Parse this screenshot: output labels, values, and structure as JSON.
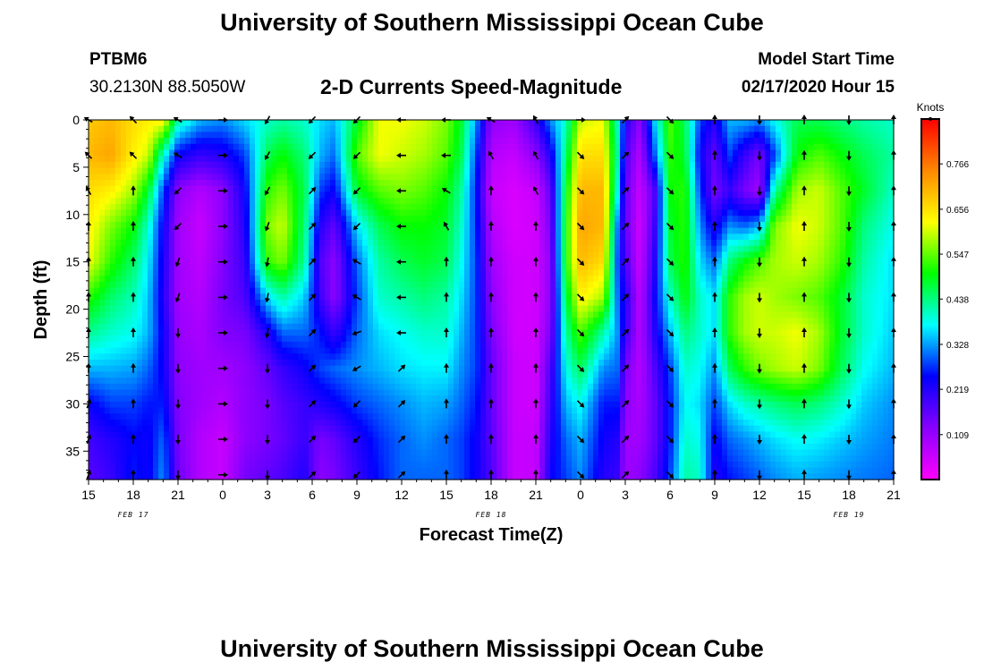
{
  "header": {
    "title_top": "University of Southern Mississippi Ocean Cube",
    "title_bottom": "University of Southern Mississippi Ocean Cube",
    "station_id": "PTBM6",
    "station_coords": "30.2130N 88.5050W",
    "chart_title": "2-D Currents Speed-Magnitude",
    "model_start_label": "Model Start Time",
    "model_start_value": "02/17/2020 Hour 15"
  },
  "chart_data": {
    "type": "heatmap",
    "title": "2-D Currents Speed-Magnitude",
    "xlabel": "Forecast Time(Z)",
    "ylabel": "Depth (ft)",
    "x_tick_labels": [
      "15",
      "18",
      "21",
      "0",
      "3",
      "6",
      "9",
      "12",
      "15",
      "18",
      "21",
      "0",
      "3",
      "6",
      "9",
      "12",
      "15",
      "18",
      "21"
    ],
    "date_labels": [
      {
        "label": "FEB 17",
        "x_hours": 3
      },
      {
        "label": "FEB 18",
        "x_hours": 27
      },
      {
        "label": "FEB 19",
        "x_hours": 51
      }
    ],
    "xlim_hours": [
      0,
      54
    ],
    "y_ticks": [
      0,
      5,
      10,
      15,
      20,
      25,
      30,
      35
    ],
    "ylim": [
      0,
      38
    ],
    "y_inverted": true,
    "colorbar": {
      "unit": "Knots",
      "ticks": [
        "0.766",
        "0.656",
        "0.547",
        "0.438",
        "0.328",
        "0.219",
        "0.109"
      ],
      "tick_values": [
        0.766,
        0.656,
        0.547,
        0.438,
        0.328,
        0.219,
        0.109
      ],
      "range": [
        0,
        0.875
      ],
      "colors": [
        "#ff00ff",
        "#8800ff",
        "#0000ff",
        "#00ffff",
        "#00ff00",
        "#ffff00",
        "#ff8800",
        "#ff0000"
      ]
    },
    "arrow_depths": [
      0,
      3.75,
      7.5,
      11.25,
      15,
      18.75,
      22.5,
      26.25,
      30,
      33.75,
      37.5
    ],
    "speed_profiles": [
      {
        "x_hours": 0,
        "speeds": [
          0.68,
          0.7,
          0.66,
          0.64,
          0.62,
          0.52,
          0.43,
          0.34,
          0.24,
          0.19,
          0.17
        ]
      },
      {
        "x_hours": 1.5,
        "speeds": [
          0.7,
          0.72,
          0.64,
          0.56,
          0.52,
          0.45,
          0.4,
          0.34,
          0.28,
          0.22,
          0.2
        ]
      },
      {
        "x_hours": 3,
        "speeds": [
          0.66,
          0.64,
          0.58,
          0.5,
          0.45,
          0.41,
          0.38,
          0.33,
          0.28,
          0.25,
          0.26
        ]
      },
      {
        "x_hours": 4,
        "speeds": [
          0.64,
          0.6,
          0.48,
          0.4,
          0.37,
          0.35,
          0.34,
          0.3,
          0.26,
          0.24,
          0.24
        ]
      },
      {
        "x_hours": 5,
        "speeds": [
          0.64,
          0.4,
          0.28,
          0.24,
          0.23,
          0.22,
          0.24,
          0.24,
          0.26,
          0.3,
          0.32
        ]
      },
      {
        "x_hours": 6,
        "speeds": [
          0.42,
          0.24,
          0.12,
          0.1,
          0.1,
          0.1,
          0.11,
          0.12,
          0.13,
          0.14,
          0.15
        ]
      },
      {
        "x_hours": 7.5,
        "speeds": [
          0.34,
          0.2,
          0.08,
          0.06,
          0.07,
          0.08,
          0.09,
          0.1,
          0.1,
          0.08,
          0.08
        ]
      },
      {
        "x_hours": 9,
        "speeds": [
          0.32,
          0.22,
          0.12,
          0.12,
          0.13,
          0.14,
          0.13,
          0.1,
          0.08,
          0.06,
          0.06
        ]
      },
      {
        "x_hours": 10.5,
        "speeds": [
          0.36,
          0.28,
          0.24,
          0.22,
          0.2,
          0.18,
          0.14,
          0.12,
          0.12,
          0.12,
          0.14
        ]
      },
      {
        "x_hours": 12,
        "speeds": [
          0.4,
          0.46,
          0.52,
          0.56,
          0.52,
          0.36,
          0.22,
          0.16,
          0.14,
          0.14,
          0.16
        ]
      },
      {
        "x_hours": 13,
        "speeds": [
          0.42,
          0.5,
          0.56,
          0.6,
          0.56,
          0.42,
          0.3,
          0.2,
          0.17,
          0.16,
          0.18
        ]
      },
      {
        "x_hours": 14.5,
        "speeds": [
          0.4,
          0.44,
          0.46,
          0.44,
          0.42,
          0.35,
          0.3,
          0.24,
          0.2,
          0.2,
          0.22
        ]
      },
      {
        "x_hours": 15.5,
        "speeds": [
          0.36,
          0.34,
          0.28,
          0.22,
          0.18,
          0.2,
          0.26,
          0.28,
          0.22,
          0.14,
          0.12
        ]
      },
      {
        "x_hours": 16.5,
        "speeds": [
          0.34,
          0.3,
          0.24,
          0.16,
          0.12,
          0.12,
          0.2,
          0.3,
          0.24,
          0.16,
          0.14
        ]
      },
      {
        "x_hours": 18,
        "speeds": [
          0.48,
          0.54,
          0.48,
          0.36,
          0.3,
          0.28,
          0.3,
          0.32,
          0.28,
          0.22,
          0.2
        ]
      },
      {
        "x_hours": 19.5,
        "speeds": [
          0.62,
          0.62,
          0.54,
          0.46,
          0.42,
          0.4,
          0.36,
          0.34,
          0.3,
          0.27,
          0.26
        ]
      },
      {
        "x_hours": 21,
        "speeds": [
          0.62,
          0.6,
          0.56,
          0.5,
          0.46,
          0.42,
          0.38,
          0.36,
          0.32,
          0.3,
          0.3
        ]
      },
      {
        "x_hours": 22.5,
        "speeds": [
          0.6,
          0.58,
          0.54,
          0.5,
          0.48,
          0.44,
          0.4,
          0.37,
          0.34,
          0.32,
          0.3
        ]
      },
      {
        "x_hours": 24,
        "speeds": [
          0.56,
          0.54,
          0.5,
          0.48,
          0.46,
          0.42,
          0.4,
          0.37,
          0.33,
          0.3,
          0.3
        ]
      },
      {
        "x_hours": 25,
        "speeds": [
          0.48,
          0.46,
          0.42,
          0.4,
          0.38,
          0.36,
          0.34,
          0.32,
          0.3,
          0.28,
          0.28
        ]
      },
      {
        "x_hours": 26,
        "speeds": [
          0.32,
          0.28,
          0.26,
          0.27,
          0.28,
          0.28,
          0.28,
          0.28,
          0.26,
          0.24,
          0.24
        ]
      },
      {
        "x_hours": 27,
        "speeds": [
          0.12,
          0.08,
          0.06,
          0.08,
          0.1,
          0.12,
          0.14,
          0.16,
          0.16,
          0.17,
          0.18
        ]
      },
      {
        "x_hours": 28.5,
        "speeds": [
          0.1,
          0.06,
          0.04,
          0.04,
          0.05,
          0.05,
          0.05,
          0.06,
          0.06,
          0.06,
          0.06
        ]
      },
      {
        "x_hours": 30,
        "speeds": [
          0.2,
          0.12,
          0.06,
          0.05,
          0.05,
          0.05,
          0.05,
          0.05,
          0.05,
          0.06,
          0.06
        ]
      },
      {
        "x_hours": 31,
        "speeds": [
          0.32,
          0.22,
          0.16,
          0.14,
          0.12,
          0.12,
          0.14,
          0.18,
          0.2,
          0.22,
          0.24
        ]
      },
      {
        "x_hours": 32,
        "speeds": [
          0.4,
          0.44,
          0.48,
          0.5,
          0.5,
          0.46,
          0.42,
          0.38,
          0.34,
          0.3,
          0.28
        ]
      },
      {
        "x_hours": 33,
        "speeds": [
          0.6,
          0.66,
          0.7,
          0.72,
          0.7,
          0.64,
          0.54,
          0.46,
          0.38,
          0.34,
          0.32
        ]
      },
      {
        "x_hours": 34.5,
        "speeds": [
          0.62,
          0.66,
          0.7,
          0.7,
          0.66,
          0.58,
          0.42,
          0.32,
          0.26,
          0.24,
          0.22
        ]
      },
      {
        "x_hours": 35.5,
        "speeds": [
          0.4,
          0.42,
          0.38,
          0.3,
          0.28,
          0.3,
          0.32,
          0.3,
          0.26,
          0.22,
          0.2
        ]
      },
      {
        "x_hours": 36,
        "speeds": [
          0.22,
          0.18,
          0.16,
          0.16,
          0.18,
          0.22,
          0.2,
          0.14,
          0.12,
          0.1,
          0.1
        ]
      },
      {
        "x_hours": 37,
        "speeds": [
          0.12,
          0.08,
          0.06,
          0.05,
          0.06,
          0.07,
          0.08,
          0.08,
          0.09,
          0.1,
          0.12
        ]
      },
      {
        "x_hours": 38,
        "speeds": [
          0.36,
          0.3,
          0.18,
          0.2,
          0.22,
          0.24,
          0.22,
          0.18,
          0.16,
          0.16,
          0.18
        ]
      },
      {
        "x_hours": 39,
        "speeds": [
          0.54,
          0.52,
          0.5,
          0.48,
          0.46,
          0.4,
          0.34,
          0.28,
          0.26,
          0.26,
          0.28
        ]
      },
      {
        "x_hours": 40,
        "speeds": [
          0.46,
          0.48,
          0.52,
          0.52,
          0.52,
          0.5,
          0.44,
          0.4,
          0.38,
          0.4,
          0.42
        ]
      },
      {
        "x_hours": 41,
        "speeds": [
          0.28,
          0.24,
          0.28,
          0.32,
          0.36,
          0.4,
          0.4,
          0.38,
          0.36,
          0.38,
          0.4
        ]
      },
      {
        "x_hours": 42,
        "speeds": [
          0.22,
          0.16,
          0.14,
          0.22,
          0.3,
          0.36,
          0.36,
          0.32,
          0.28,
          0.24,
          0.22
        ]
      },
      {
        "x_hours": 43,
        "speeds": [
          0.34,
          0.28,
          0.2,
          0.32,
          0.44,
          0.52,
          0.52,
          0.46,
          0.36,
          0.3,
          0.26
        ]
      },
      {
        "x_hours": 44,
        "speeds": [
          0.34,
          0.2,
          0.14,
          0.3,
          0.5,
          0.58,
          0.58,
          0.52,
          0.4,
          0.32,
          0.28
        ]
      },
      {
        "x_hours": 45,
        "speeds": [
          0.32,
          0.14,
          0.1,
          0.34,
          0.54,
          0.6,
          0.6,
          0.56,
          0.42,
          0.34,
          0.3
        ]
      },
      {
        "x_hours": 46,
        "speeds": [
          0.38,
          0.28,
          0.42,
          0.56,
          0.58,
          0.58,
          0.6,
          0.58,
          0.44,
          0.36,
          0.32
        ]
      },
      {
        "x_hours": 47.5,
        "speeds": [
          0.46,
          0.5,
          0.58,
          0.62,
          0.6,
          0.56,
          0.62,
          0.6,
          0.46,
          0.38,
          0.34
        ]
      },
      {
        "x_hours": 49,
        "speeds": [
          0.46,
          0.54,
          0.6,
          0.6,
          0.58,
          0.54,
          0.58,
          0.56,
          0.44,
          0.37,
          0.33
        ]
      },
      {
        "x_hours": 50.5,
        "speeds": [
          0.44,
          0.5,
          0.54,
          0.54,
          0.52,
          0.48,
          0.48,
          0.46,
          0.4,
          0.35,
          0.32
        ]
      },
      {
        "x_hours": 52,
        "speeds": [
          0.42,
          0.46,
          0.48,
          0.44,
          0.42,
          0.4,
          0.4,
          0.38,
          0.35,
          0.33,
          0.31
        ]
      },
      {
        "x_hours": 54,
        "speeds": [
          0.4,
          0.42,
          0.4,
          0.38,
          0.36,
          0.36,
          0.35,
          0.34,
          0.32,
          0.31,
          0.3
        ]
      }
    ],
    "arrow_columns": [
      {
        "x_hours": 0,
        "angles": [
          300,
          315,
          330,
          0,
          0,
          0,
          0,
          0,
          20,
          20,
          20
        ]
      },
      {
        "x_hours": 3,
        "angles": [
          315,
          315,
          0,
          0,
          0,
          0,
          0,
          0,
          0,
          0,
          0
        ]
      },
      {
        "x_hours": 6,
        "angles": [
          300,
          300,
          225,
          225,
          200,
          200,
          180,
          180,
          180,
          180,
          180
        ]
      },
      {
        "x_hours": 9,
        "angles": [
          90,
          90,
          90,
          90,
          90,
          90,
          90,
          90,
          90,
          90,
          90
        ]
      },
      {
        "x_hours": 12,
        "angles": [
          210,
          210,
          210,
          200,
          190,
          190,
          190,
          180,
          180,
          180,
          180
        ]
      },
      {
        "x_hours": 15,
        "angles": [
          225,
          225,
          45,
          45,
          45,
          45,
          45,
          45,
          45,
          45,
          45
        ]
      },
      {
        "x_hours": 18,
        "angles": [
          225,
          225,
          225,
          225,
          300,
          300,
          250,
          240,
          225,
          225,
          225
        ]
      },
      {
        "x_hours": 21,
        "angles": [
          270,
          270,
          270,
          270,
          270,
          270,
          270,
          45,
          45,
          45,
          45
        ]
      },
      {
        "x_hours": 24,
        "angles": [
          270,
          270,
          300,
          330,
          0,
          0,
          0,
          0,
          0,
          0,
          0
        ]
      },
      {
        "x_hours": 27,
        "angles": [
          300,
          330,
          0,
          0,
          0,
          0,
          0,
          0,
          0,
          0,
          0
        ]
      },
      {
        "x_hours": 30,
        "angles": [
          330,
          330,
          330,
          0,
          0,
          0,
          0,
          0,
          0,
          0,
          0
        ]
      },
      {
        "x_hours": 33,
        "angles": [
          90,
          135,
          135,
          135,
          135,
          135,
          135,
          135,
          135,
          135,
          135
        ]
      },
      {
        "x_hours": 36,
        "angles": [
          45,
          45,
          45,
          45,
          45,
          45,
          45,
          45,
          45,
          45,
          45
        ]
      },
      {
        "x_hours": 39,
        "angles": [
          135,
          135,
          135,
          135,
          135,
          135,
          135,
          135,
          135,
          135,
          135
        ]
      },
      {
        "x_hours": 42,
        "angles": [
          0,
          0,
          0,
          0,
          0,
          0,
          0,
          0,
          0,
          0,
          0
        ]
      },
      {
        "x_hours": 45,
        "angles": [
          180,
          180,
          180,
          180,
          180,
          180,
          180,
          180,
          180,
          180,
          180
        ]
      },
      {
        "x_hours": 48,
        "angles": [
          0,
          0,
          0,
          0,
          0,
          0,
          0,
          0,
          0,
          0,
          0
        ]
      },
      {
        "x_hours": 51,
        "angles": [
          180,
          180,
          180,
          180,
          180,
          180,
          180,
          180,
          180,
          180,
          180
        ]
      },
      {
        "x_hours": 54,
        "angles": [
          0,
          0,
          0,
          0,
          0,
          0,
          0,
          0,
          0,
          0,
          0
        ]
      }
    ]
  }
}
